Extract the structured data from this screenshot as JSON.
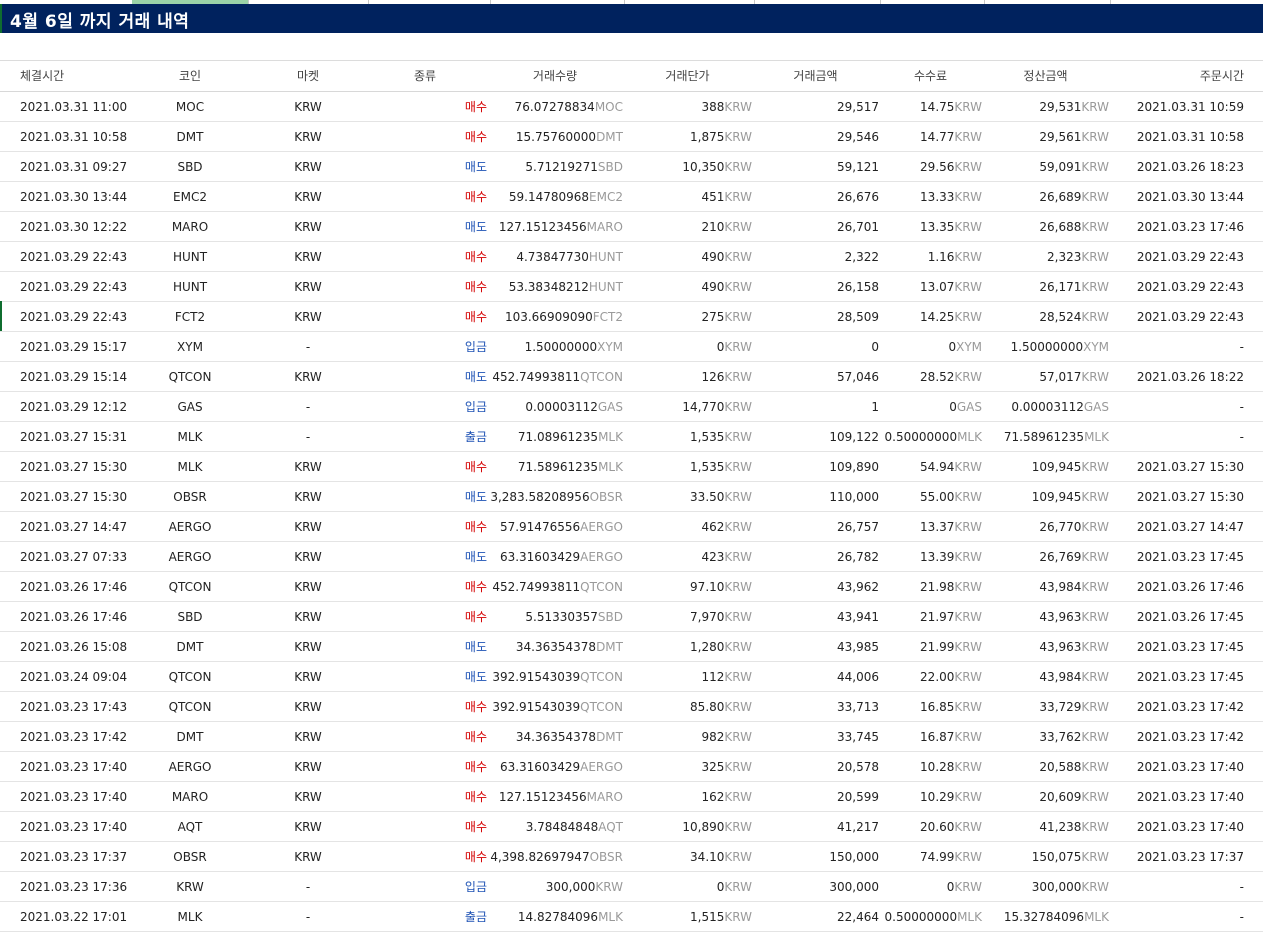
{
  "title": "4월 6일 까지 거래 내역",
  "headers": [
    "체결시간",
    "코인",
    "마켓",
    "종류",
    "거래수량",
    "거래단가",
    "거래금액",
    "수수료",
    "정산금액",
    "주문시간"
  ],
  "rows": [
    {
      "time": "2021.03.31 11:00",
      "coin": "MOC",
      "market": "KRW",
      "type": "매수",
      "qty": "76.07278834",
      "qty_unit": "MOC",
      "price": "388",
      "price_unit": "KRW",
      "amount": "29,517",
      "fee": "14.75",
      "fee_unit": "KRW",
      "settle": "29,531",
      "settle_unit": "KRW",
      "order_time": "2021.03.31 10:59"
    },
    {
      "time": "2021.03.31 10:58",
      "coin": "DMT",
      "market": "KRW",
      "type": "매수",
      "qty": "15.75760000",
      "qty_unit": "DMT",
      "price": "1,875",
      "price_unit": "KRW",
      "amount": "29,546",
      "fee": "14.77",
      "fee_unit": "KRW",
      "settle": "29,561",
      "settle_unit": "KRW",
      "order_time": "2021.03.31 10:58"
    },
    {
      "time": "2021.03.31 09:27",
      "coin": "SBD",
      "market": "KRW",
      "type": "매도",
      "qty": "5.71219271",
      "qty_unit": "SBD",
      "price": "10,350",
      "price_unit": "KRW",
      "amount": "59,121",
      "fee": "29.56",
      "fee_unit": "KRW",
      "settle": "59,091",
      "settle_unit": "KRW",
      "order_time": "2021.03.26 18:23"
    },
    {
      "time": "2021.03.30 13:44",
      "coin": "EMC2",
      "market": "KRW",
      "type": "매수",
      "qty": "59.14780968",
      "qty_unit": "EMC2",
      "price": "451",
      "price_unit": "KRW",
      "amount": "26,676",
      "fee": "13.33",
      "fee_unit": "KRW",
      "settle": "26,689",
      "settle_unit": "KRW",
      "order_time": "2021.03.30 13:44"
    },
    {
      "time": "2021.03.30 12:22",
      "coin": "MARO",
      "market": "KRW",
      "type": "매도",
      "qty": "127.15123456",
      "qty_unit": "MARO",
      "price": "210",
      "price_unit": "KRW",
      "amount": "26,701",
      "fee": "13.35",
      "fee_unit": "KRW",
      "settle": "26,688",
      "settle_unit": "KRW",
      "order_time": "2021.03.23 17:46"
    },
    {
      "time": "2021.03.29 22:43",
      "coin": "HUNT",
      "market": "KRW",
      "type": "매수",
      "qty": "4.73847730",
      "qty_unit": "HUNT",
      "price": "490",
      "price_unit": "KRW",
      "amount": "2,322",
      "fee": "1.16",
      "fee_unit": "KRW",
      "settle": "2,323",
      "settle_unit": "KRW",
      "order_time": "2021.03.29 22:43"
    },
    {
      "time": "2021.03.29 22:43",
      "coin": "HUNT",
      "market": "KRW",
      "type": "매수",
      "qty": "53.38348212",
      "qty_unit": "HUNT",
      "price": "490",
      "price_unit": "KRW",
      "amount": "26,158",
      "fee": "13.07",
      "fee_unit": "KRW",
      "settle": "26,171",
      "settle_unit": "KRW",
      "order_time": "2021.03.29 22:43"
    },
    {
      "time": "2021.03.29 22:43",
      "coin": "FCT2",
      "market": "KRW",
      "type": "매수",
      "qty": "103.66909090",
      "qty_unit": "FCT2",
      "price": "275",
      "price_unit": "KRW",
      "amount": "28,509",
      "fee": "14.25",
      "fee_unit": "KRW",
      "settle": "28,524",
      "settle_unit": "KRW",
      "order_time": "2021.03.29 22:43"
    },
    {
      "time": "2021.03.29 15:17",
      "coin": "XYM",
      "market": "-",
      "type": "입금",
      "qty": "1.50000000",
      "qty_unit": "XYM",
      "price": "0",
      "price_unit": "KRW",
      "amount": "0",
      "fee": "0",
      "fee_unit": "XYM",
      "settle": "1.50000000",
      "settle_unit": "XYM",
      "order_time": "-"
    },
    {
      "time": "2021.03.29 15:14",
      "coin": "QTCON",
      "market": "KRW",
      "type": "매도",
      "qty": "452.74993811",
      "qty_unit": "QTCON",
      "price": "126",
      "price_unit": "KRW",
      "amount": "57,046",
      "fee": "28.52",
      "fee_unit": "KRW",
      "settle": "57,017",
      "settle_unit": "KRW",
      "order_time": "2021.03.26 18:22"
    },
    {
      "time": "2021.03.29 12:12",
      "coin": "GAS",
      "market": "-",
      "type": "입금",
      "qty": "0.00003112",
      "qty_unit": "GAS",
      "price": "14,770",
      "price_unit": "KRW",
      "amount": "1",
      "fee": "0",
      "fee_unit": "GAS",
      "settle": "0.00003112",
      "settle_unit": "GAS",
      "order_time": "-"
    },
    {
      "time": "2021.03.27 15:31",
      "coin": "MLK",
      "market": "-",
      "type": "출금",
      "qty": "71.08961235",
      "qty_unit": "MLK",
      "price": "1,535",
      "price_unit": "KRW",
      "amount": "109,122",
      "fee": "0.50000000",
      "fee_unit": "MLK",
      "settle": "71.58961235",
      "settle_unit": "MLK",
      "order_time": "-"
    },
    {
      "time": "2021.03.27 15:30",
      "coin": "MLK",
      "market": "KRW",
      "type": "매수",
      "qty": "71.58961235",
      "qty_unit": "MLK",
      "price": "1,535",
      "price_unit": "KRW",
      "amount": "109,890",
      "fee": "54.94",
      "fee_unit": "KRW",
      "settle": "109,945",
      "settle_unit": "KRW",
      "order_time": "2021.03.27 15:30"
    },
    {
      "time": "2021.03.27 15:30",
      "coin": "OBSR",
      "market": "KRW",
      "type": "매도",
      "qty": "3,283.58208956",
      "qty_unit": "OBSR",
      "price": "33.50",
      "price_unit": "KRW",
      "amount": "110,000",
      "fee": "55.00",
      "fee_unit": "KRW",
      "settle": "109,945",
      "settle_unit": "KRW",
      "order_time": "2021.03.27 15:30"
    },
    {
      "time": "2021.03.27 14:47",
      "coin": "AERGO",
      "market": "KRW",
      "type": "매수",
      "qty": "57.91476556",
      "qty_unit": "AERGO",
      "price": "462",
      "price_unit": "KRW",
      "amount": "26,757",
      "fee": "13.37",
      "fee_unit": "KRW",
      "settle": "26,770",
      "settle_unit": "KRW",
      "order_time": "2021.03.27 14:47"
    },
    {
      "time": "2021.03.27 07:33",
      "coin": "AERGO",
      "market": "KRW",
      "type": "매도",
      "qty": "63.31603429",
      "qty_unit": "AERGO",
      "price": "423",
      "price_unit": "KRW",
      "amount": "26,782",
      "fee": "13.39",
      "fee_unit": "KRW",
      "settle": "26,769",
      "settle_unit": "KRW",
      "order_time": "2021.03.23 17:45"
    },
    {
      "time": "2021.03.26 17:46",
      "coin": "QTCON",
      "market": "KRW",
      "type": "매수",
      "qty": "452.74993811",
      "qty_unit": "QTCON",
      "price": "97.10",
      "price_unit": "KRW",
      "amount": "43,962",
      "fee": "21.98",
      "fee_unit": "KRW",
      "settle": "43,984",
      "settle_unit": "KRW",
      "order_time": "2021.03.26 17:46"
    },
    {
      "time": "2021.03.26 17:46",
      "coin": "SBD",
      "market": "KRW",
      "type": "매수",
      "qty": "5.51330357",
      "qty_unit": "SBD",
      "price": "7,970",
      "price_unit": "KRW",
      "amount": "43,941",
      "fee": "21.97",
      "fee_unit": "KRW",
      "settle": "43,963",
      "settle_unit": "KRW",
      "order_time": "2021.03.26 17:45"
    },
    {
      "time": "2021.03.26 15:08",
      "coin": "DMT",
      "market": "KRW",
      "type": "매도",
      "qty": "34.36354378",
      "qty_unit": "DMT",
      "price": "1,280",
      "price_unit": "KRW",
      "amount": "43,985",
      "fee": "21.99",
      "fee_unit": "KRW",
      "settle": "43,963",
      "settle_unit": "KRW",
      "order_time": "2021.03.23 17:45"
    },
    {
      "time": "2021.03.24 09:04",
      "coin": "QTCON",
      "market": "KRW",
      "type": "매도",
      "qty": "392.91543039",
      "qty_unit": "QTCON",
      "price": "112",
      "price_unit": "KRW",
      "amount": "44,006",
      "fee": "22.00",
      "fee_unit": "KRW",
      "settle": "43,984",
      "settle_unit": "KRW",
      "order_time": "2021.03.23 17:45"
    },
    {
      "time": "2021.03.23 17:43",
      "coin": "QTCON",
      "market": "KRW",
      "type": "매수",
      "qty": "392.91543039",
      "qty_unit": "QTCON",
      "price": "85.80",
      "price_unit": "KRW",
      "amount": "33,713",
      "fee": "16.85",
      "fee_unit": "KRW",
      "settle": "33,729",
      "settle_unit": "KRW",
      "order_time": "2021.03.23 17:42"
    },
    {
      "time": "2021.03.23 17:42",
      "coin": "DMT",
      "market": "KRW",
      "type": "매수",
      "qty": "34.36354378",
      "qty_unit": "DMT",
      "price": "982",
      "price_unit": "KRW",
      "amount": "33,745",
      "fee": "16.87",
      "fee_unit": "KRW",
      "settle": "33,762",
      "settle_unit": "KRW",
      "order_time": "2021.03.23 17:42"
    },
    {
      "time": "2021.03.23 17:40",
      "coin": "AERGO",
      "market": "KRW",
      "type": "매수",
      "qty": "63.31603429",
      "qty_unit": "AERGO",
      "price": "325",
      "price_unit": "KRW",
      "amount": "20,578",
      "fee": "10.28",
      "fee_unit": "KRW",
      "settle": "20,588",
      "settle_unit": "KRW",
      "order_time": "2021.03.23 17:40"
    },
    {
      "time": "2021.03.23 17:40",
      "coin": "MARO",
      "market": "KRW",
      "type": "매수",
      "qty": "127.15123456",
      "qty_unit": "MARO",
      "price": "162",
      "price_unit": "KRW",
      "amount": "20,599",
      "fee": "10.29",
      "fee_unit": "KRW",
      "settle": "20,609",
      "settle_unit": "KRW",
      "order_time": "2021.03.23 17:40"
    },
    {
      "time": "2021.03.23 17:40",
      "coin": "AQT",
      "market": "KRW",
      "type": "매수",
      "qty": "3.78484848",
      "qty_unit": "AQT",
      "price": "10,890",
      "price_unit": "KRW",
      "amount": "41,217",
      "fee": "20.60",
      "fee_unit": "KRW",
      "settle": "41,238",
      "settle_unit": "KRW",
      "order_time": "2021.03.23 17:40"
    },
    {
      "time": "2021.03.23 17:37",
      "coin": "OBSR",
      "market": "KRW",
      "type": "매수",
      "qty": "4,398.82697947",
      "qty_unit": "OBSR",
      "price": "34.10",
      "price_unit": "KRW",
      "amount": "150,000",
      "fee": "74.99",
      "fee_unit": "KRW",
      "settle": "150,075",
      "settle_unit": "KRW",
      "order_time": "2021.03.23 17:37"
    },
    {
      "time": "2021.03.23 17:36",
      "coin": "KRW",
      "market": "-",
      "type": "입금",
      "qty": "300,000",
      "qty_unit": "KRW",
      "price": "0",
      "price_unit": "KRW",
      "amount": "300,000",
      "fee": "0",
      "fee_unit": "KRW",
      "settle": "300,000",
      "settle_unit": "KRW",
      "order_time": "-"
    },
    {
      "time": "2021.03.22 17:01",
      "coin": "MLK",
      "market": "-",
      "type": "출금",
      "qty": "14.82784096",
      "qty_unit": "MLK",
      "price": "1,515",
      "price_unit": "KRW",
      "amount": "22,464",
      "fee": "0.50000000",
      "fee_unit": "MLK",
      "settle": "15.32784096",
      "settle_unit": "MLK",
      "order_time": "-"
    }
  ],
  "colors": {
    "title_bg": "#00225e",
    "buy": "#d40000",
    "sell": "#1f53b5",
    "unit": "#9a9a9a"
  }
}
